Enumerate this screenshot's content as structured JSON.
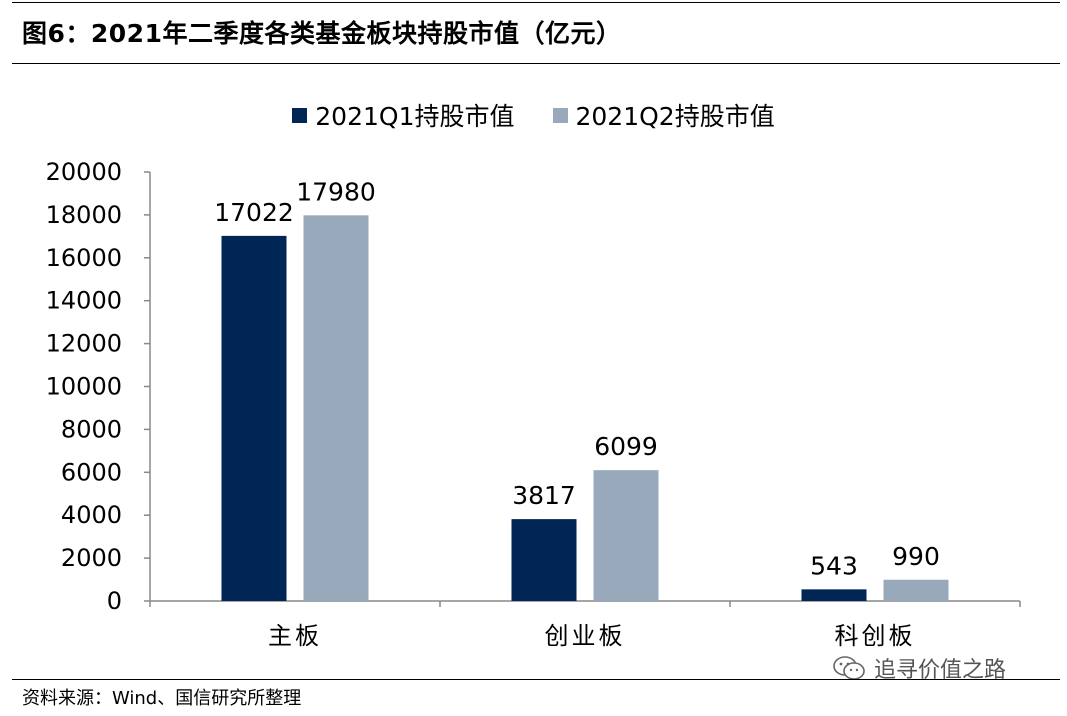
{
  "figure": {
    "title": "图6：2021年二季度各类基金板块持股市值（亿元）",
    "source": "资料来源：Wind、国信研究所整理",
    "watermark": "追寻价值之路"
  },
  "colors": {
    "series1": "#002655",
    "series2": "#97A9BB",
    "axis": "#888888"
  },
  "chart_data": {
    "type": "bar",
    "title": "",
    "xlabel": "",
    "ylabel": "",
    "categories": [
      "主板",
      "创业板",
      "科创板"
    ],
    "series": [
      {
        "name": "2021Q1持股市值",
        "values": [
          17022,
          3817,
          543
        ]
      },
      {
        "name": "2021Q2持股市值",
        "values": [
          17980,
          6099,
          990
        ]
      }
    ],
    "ylim": [
      0,
      20000
    ],
    "yticks": [
      0,
      2000,
      4000,
      6000,
      8000,
      10000,
      12000,
      14000,
      16000,
      18000,
      20000
    ],
    "data_labels": true,
    "grid": false,
    "legend": "top-center"
  }
}
